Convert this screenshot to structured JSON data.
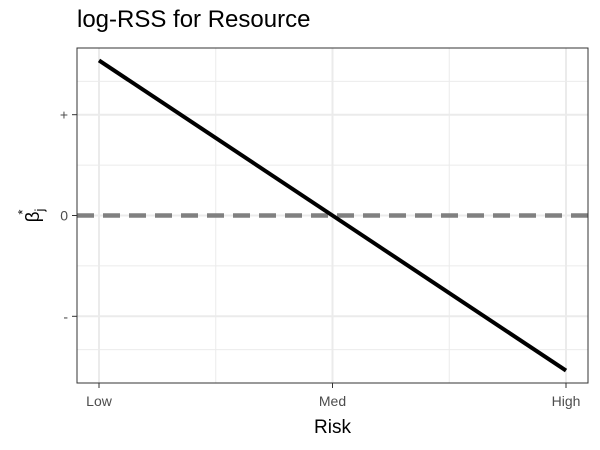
{
  "chart_data": {
    "type": "line",
    "title": "log-RSS for Resource",
    "xlabel": "Risk",
    "ylabel": {
      "base": "β",
      "subscript": "j",
      "superscript": "*"
    },
    "categories": [
      "Low",
      "Med",
      "High"
    ],
    "series": [
      {
        "values": [
          1,
          0,
          -1
        ],
        "color": "#000000"
      }
    ],
    "y_ticks": [
      {
        "value": 0.65,
        "label": "+"
      },
      {
        "value": 0,
        "label": "0"
      },
      {
        "value": -0.65,
        "label": "-"
      }
    ],
    "ylim": [
      -1.08,
      1.08
    ],
    "reference_line": {
      "value": 0,
      "style": "dashed",
      "color": "#808080"
    },
    "grid": true,
    "legend": "none",
    "theme": "black-and-white"
  }
}
